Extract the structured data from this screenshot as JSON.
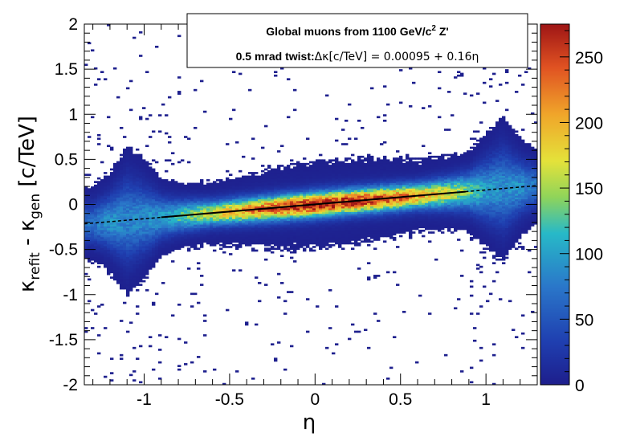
{
  "chart_data": {
    "type": "heatmap",
    "title": "",
    "legend": {
      "line1": {
        "text": "Global muons from 1100 GeV/c",
        "sup": "2",
        "tail": " Z'"
      },
      "line2": {
        "lead": "0.5 mrad twist:",
        "formula": "Δκ[c/TeV] = 0.00095 + 0.16η"
      },
      "placement": "top-right"
    },
    "xlabel": "η",
    "ylabel": {
      "kappa1": "κ",
      "sub1": "refit",
      "minus": " - ",
      "kappa2": "κ",
      "sub2": "gen",
      "unit": " [c/TeV]"
    },
    "xlim": [
      -1.35,
      1.3
    ],
    "ylim": [
      -2,
      2
    ],
    "x_ticks": [
      -1,
      -0.5,
      0,
      0.5,
      1
    ],
    "x_tick_labels": [
      "-1",
      "-0.5",
      "0",
      "0.5",
      "1"
    ],
    "y_ticks": [
      -2,
      -1.5,
      -1,
      -0.5,
      0,
      0.5,
      1,
      1.5,
      2
    ],
    "y_tick_labels": [
      "-2",
      "-1.5",
      "-1",
      "-0.5",
      "0",
      "0.5",
      "1",
      "1.5",
      "2"
    ],
    "z_range": [
      0,
      275
    ],
    "z_ticks": [
      0,
      50,
      100,
      150,
      200,
      250
    ],
    "z_tick_labels": [
      "0",
      "50",
      "100",
      "150",
      "200",
      "250"
    ],
    "grid": false,
    "fit": {
      "intercept": 0.00095,
      "slope": 0.16,
      "solid_range": [
        -0.9,
        0.88
      ],
      "dashed_range": [
        -1.35,
        1.3
      ]
    },
    "profile": {
      "eta": [
        -1.3,
        -1.2,
        -1.1,
        -1.0,
        -0.9,
        -0.8,
        -0.7,
        -0.6,
        -0.5,
        -0.4,
        -0.3,
        -0.2,
        -0.1,
        0.0,
        0.1,
        0.2,
        0.3,
        0.4,
        0.5,
        0.6,
        0.7,
        0.8,
        0.9,
        1.0,
        1.1,
        1.2,
        1.3
      ],
      "peak_counts": [
        70,
        90,
        80,
        85,
        95,
        120,
        140,
        165,
        185,
        205,
        225,
        240,
        255,
        265,
        260,
        255,
        245,
        235,
        225,
        200,
        180,
        160,
        130,
        95,
        85,
        90,
        70
      ],
      "core_width": [
        0.14,
        0.18,
        0.28,
        0.22,
        0.14,
        0.11,
        0.1,
        0.09,
        0.09,
        0.09,
        0.09,
        0.09,
        0.09,
        0.09,
        0.09,
        0.09,
        0.09,
        0.09,
        0.09,
        0.09,
        0.1,
        0.11,
        0.13,
        0.2,
        0.27,
        0.18,
        0.14
      ]
    }
  }
}
